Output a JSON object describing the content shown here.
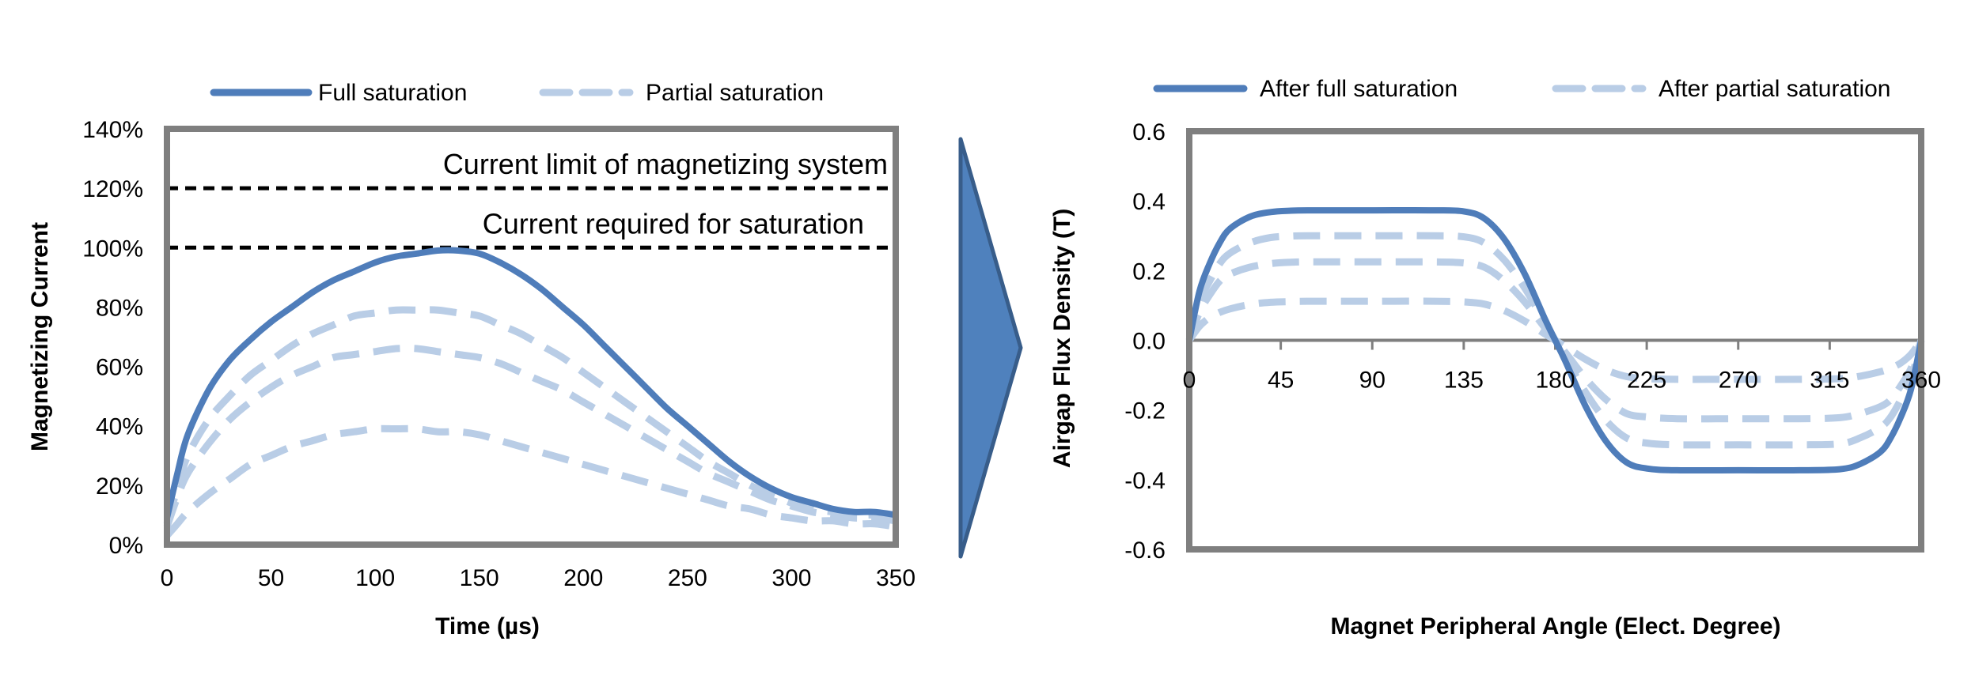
{
  "colors": {
    "full": "#4f7dba",
    "partial": "#b9cde6",
    "frame": "#7f7f7f",
    "limit_line": "#000000",
    "arrow_fill": "#4f81bd",
    "arrow_stroke": "#385d8a"
  },
  "arrow_icon": "chevron-right-arrow",
  "chart_data": [
    {
      "type": "line",
      "xlabel": "Time (µs)",
      "ylabel": "Magnetizing Current",
      "xlim": [
        0,
        350
      ],
      "ylim": [
        0,
        1.4
      ],
      "x_ticks": [
        "0",
        "50",
        "100",
        "150",
        "200",
        "250",
        "300",
        "350"
      ],
      "x_tick_values": [
        0,
        50,
        100,
        150,
        200,
        250,
        300,
        350
      ],
      "y_ticks": [
        "0%",
        "20%",
        "40%",
        "60%",
        "80%",
        "100%",
        "120%",
        "140%"
      ],
      "y_tick_values": [
        0,
        0.2,
        0.4,
        0.6,
        0.8,
        1.0,
        1.2,
        1.4
      ],
      "legend": [
        "Full saturation",
        "Partial saturation"
      ],
      "legend_position": "top",
      "grid": false,
      "reference_lines": [
        {
          "y": 1.2,
          "label": "Current limit of magnetizing system"
        },
        {
          "y": 1.0,
          "label": "Current required for saturation"
        }
      ],
      "x": [
        0,
        5,
        10,
        20,
        30,
        40,
        50,
        60,
        70,
        80,
        90,
        100,
        110,
        120,
        130,
        140,
        150,
        160,
        170,
        180,
        190,
        200,
        210,
        220,
        230,
        240,
        250,
        260,
        270,
        280,
        290,
        300,
        310,
        320,
        330,
        340,
        350
      ],
      "series": [
        {
          "name": "Full saturation",
          "style": "solid",
          "values": [
            0.09,
            0.24,
            0.37,
            0.52,
            0.62,
            0.69,
            0.75,
            0.8,
            0.85,
            0.89,
            0.92,
            0.95,
            0.97,
            0.98,
            0.99,
            0.99,
            0.98,
            0.95,
            0.91,
            0.86,
            0.8,
            0.74,
            0.67,
            0.6,
            0.53,
            0.46,
            0.4,
            0.34,
            0.28,
            0.23,
            0.19,
            0.16,
            0.14,
            0.12,
            0.11,
            0.11,
            0.1
          ]
        },
        {
          "style": "dashed",
          "values": [
            0.07,
            0.19,
            0.3,
            0.42,
            0.5,
            0.57,
            0.62,
            0.67,
            0.71,
            0.74,
            0.77,
            0.78,
            0.79,
            0.79,
            0.79,
            0.78,
            0.77,
            0.74,
            0.71,
            0.67,
            0.63,
            0.58,
            0.53,
            0.48,
            0.43,
            0.38,
            0.33,
            0.28,
            0.24,
            0.2,
            0.17,
            0.14,
            0.12,
            0.11,
            0.1,
            0.1,
            0.1
          ]
        },
        {
          "style": "dashed",
          "values": [
            0.06,
            0.16,
            0.24,
            0.34,
            0.42,
            0.48,
            0.53,
            0.57,
            0.6,
            0.63,
            0.64,
            0.65,
            0.66,
            0.66,
            0.65,
            0.64,
            0.63,
            0.61,
            0.58,
            0.55,
            0.52,
            0.48,
            0.44,
            0.4,
            0.36,
            0.32,
            0.28,
            0.24,
            0.21,
            0.18,
            0.15,
            0.13,
            0.11,
            0.1,
            0.09,
            0.09,
            0.08
          ]
        },
        {
          "style": "dashed",
          "values": [
            0.03,
            0.07,
            0.11,
            0.17,
            0.22,
            0.27,
            0.3,
            0.33,
            0.35,
            0.37,
            0.38,
            0.39,
            0.39,
            0.39,
            0.38,
            0.38,
            0.37,
            0.35,
            0.33,
            0.31,
            0.29,
            0.27,
            0.25,
            0.23,
            0.21,
            0.19,
            0.17,
            0.15,
            0.13,
            0.12,
            0.1,
            0.09,
            0.08,
            0.08,
            0.07,
            0.07,
            0.06
          ]
        }
      ]
    },
    {
      "type": "line",
      "xlabel": "Magnet Peripheral Angle (Elect. Degree)",
      "ylabel": "Airgap Flux Density (T)",
      "xlim": [
        0,
        360
      ],
      "ylim": [
        -0.6,
        0.6
      ],
      "x_ticks": [
        "0",
        "45",
        "90",
        "135",
        "180",
        "225",
        "270",
        "315",
        "360"
      ],
      "x_tick_values": [
        0,
        45,
        90,
        135,
        180,
        225,
        270,
        315,
        360
      ],
      "y_ticks": [
        "-0.6",
        "-0.4",
        "-0.2",
        "0.0",
        "0.2",
        "0.4",
        "0.6"
      ],
      "y_tick_values": [
        -0.6,
        -0.4,
        -0.2,
        0.0,
        0.2,
        0.4,
        0.6
      ],
      "x_axis_at_zero": true,
      "legend": [
        "After full saturation",
        "After partial saturation"
      ],
      "legend_position": "top",
      "grid": false,
      "x": [
        0,
        5,
        10,
        15,
        20,
        30,
        40,
        50,
        60,
        90,
        120,
        135,
        145,
        155,
        165,
        175,
        180,
        185,
        195,
        205,
        215,
        225,
        240,
        270,
        300,
        320,
        330,
        340,
        345,
        350,
        355,
        360
      ],
      "series": [
        {
          "name": "After full saturation",
          "style": "solid",
          "values": [
            0.0,
            0.14,
            0.22,
            0.28,
            0.32,
            0.355,
            0.368,
            0.372,
            0.373,
            0.373,
            0.373,
            0.37,
            0.35,
            0.29,
            0.19,
            0.06,
            0.0,
            -0.06,
            -0.19,
            -0.29,
            -0.35,
            -0.368,
            -0.373,
            -0.373,
            -0.373,
            -0.37,
            -0.355,
            -0.32,
            -0.28,
            -0.22,
            -0.14,
            0.0
          ]
        },
        {
          "style": "dashed",
          "values": [
            0.0,
            0.11,
            0.17,
            0.22,
            0.25,
            0.28,
            0.295,
            0.299,
            0.3,
            0.3,
            0.3,
            0.297,
            0.28,
            0.23,
            0.15,
            0.05,
            0.0,
            -0.05,
            -0.15,
            -0.23,
            -0.28,
            -0.295,
            -0.3,
            -0.3,
            -0.3,
            -0.297,
            -0.28,
            -0.25,
            -0.22,
            -0.17,
            -0.11,
            0.0
          ]
        },
        {
          "style": "dashed",
          "values": [
            0.0,
            0.08,
            0.13,
            0.17,
            0.19,
            0.21,
            0.22,
            0.224,
            0.225,
            0.225,
            0.225,
            0.222,
            0.21,
            0.17,
            0.11,
            0.035,
            0.0,
            -0.035,
            -0.11,
            -0.17,
            -0.21,
            -0.22,
            -0.225,
            -0.225,
            -0.225,
            -0.222,
            -0.21,
            -0.19,
            -0.17,
            -0.13,
            -0.08,
            0.0
          ]
        },
        {
          "style": "dashed",
          "values": [
            0.0,
            0.04,
            0.065,
            0.08,
            0.09,
            0.103,
            0.109,
            0.111,
            0.112,
            0.112,
            0.112,
            0.11,
            0.104,
            0.085,
            0.055,
            0.018,
            0.0,
            -0.018,
            -0.055,
            -0.085,
            -0.104,
            -0.11,
            -0.112,
            -0.112,
            -0.112,
            -0.11,
            -0.103,
            -0.09,
            -0.08,
            -0.065,
            -0.04,
            0.0
          ]
        }
      ]
    }
  ]
}
